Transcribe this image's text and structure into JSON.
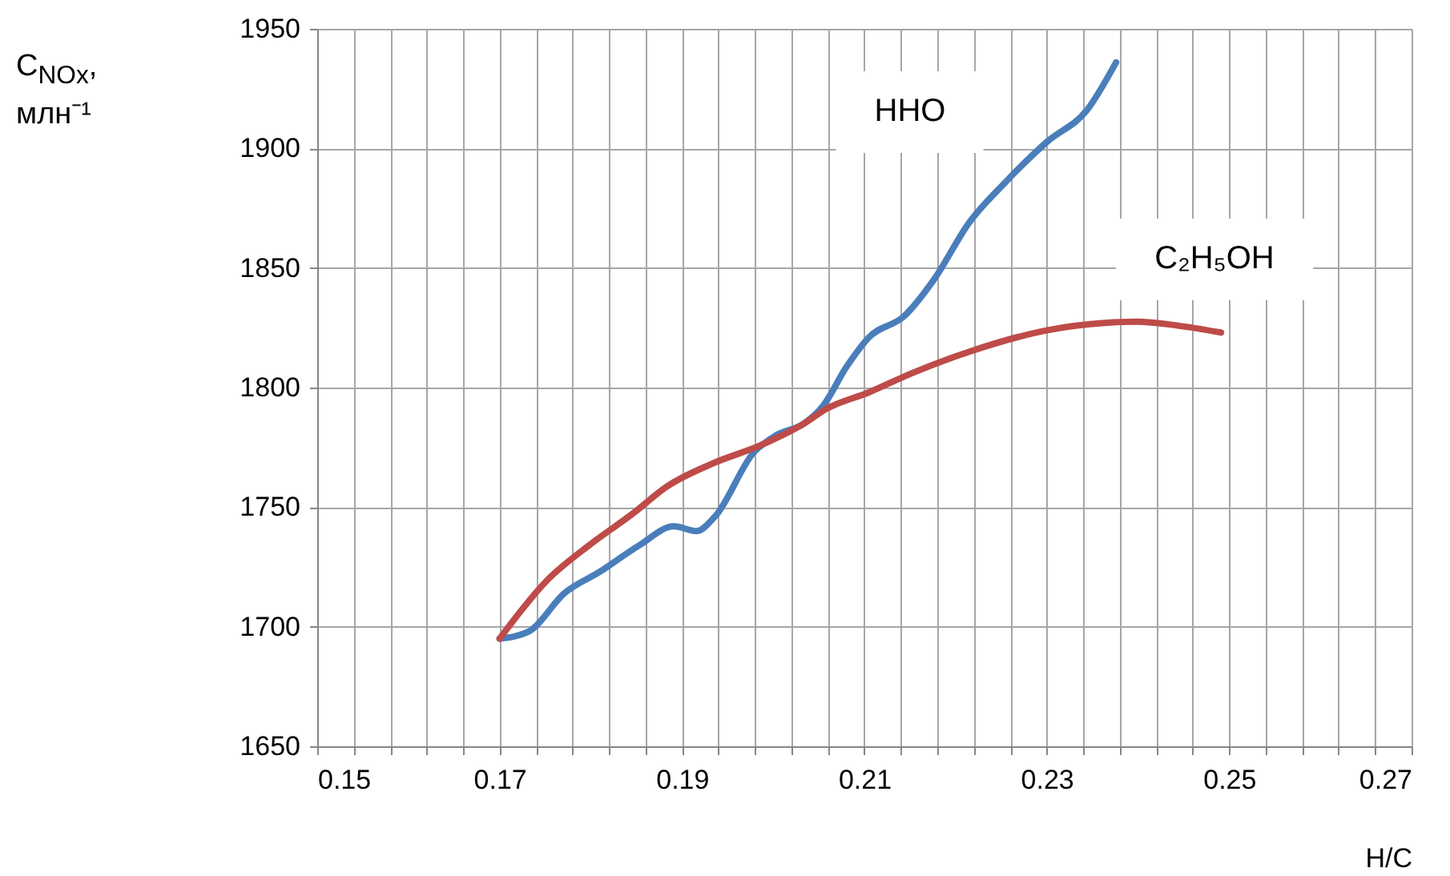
{
  "chart_data": {
    "type": "line",
    "xlabel": "H/C",
    "ylabel": "C$_{NOx}$, млн⁻¹",
    "annotations": [
      "HHO",
      "C₂H₅OH"
    ],
    "series": [
      {
        "color": "#4a7ebb",
        "x": [
          0.17,
          0.1732,
          0.1771,
          0.181,
          0.1853,
          0.1891,
          0.1916,
          0.1936,
          0.1979,
          0.2003,
          0.2034,
          0.2054,
          0.2081,
          0.2105,
          0.2144,
          0.2176,
          0.2215,
          0.2255,
          0.2301,
          0.2344,
          0.2376
        ],
        "values": [
          1695,
          1698,
          1714,
          1723,
          1734,
          1742,
          1740,
          1746,
          1773,
          1780,
          1785,
          1792,
          1809,
          1821,
          1830,
          1845,
          1869,
          1886,
          1903,
          1916,
          1936
        ]
      },
      {
        "color": "#be4b48",
        "x": [
          0.17,
          0.1751,
          0.1798,
          0.1845,
          0.1885,
          0.1932,
          0.1987,
          0.2034,
          0.2058,
          0.2105,
          0.2152,
          0.2215,
          0.2301,
          0.2364,
          0.2399,
          0.2442,
          0.2491
        ],
        "values": [
          1695,
          1719,
          1734,
          1747,
          1759,
          1768,
          1776,
          1785,
          1791,
          1798,
          1806,
          1815,
          1824,
          1827,
          1827.5,
          1826,
          1823
        ]
      }
    ],
    "xlim": [
      0.15,
      0.27
    ],
    "xticks": [
      0.15,
      {
        "value": 0.154,
        "label": null
      },
      {
        "value": 0.158,
        "label": null
      },
      {
        "value": 0.162,
        "label": null
      },
      {
        "value": 0.166,
        "label": null
      },
      0.17,
      {
        "value": 0.174,
        "label": null
      },
      {
        "value": 0.178,
        "label": null
      },
      {
        "value": 0.182,
        "label": null
      },
      {
        "value": 0.186,
        "label": null
      },
      0.19,
      {
        "value": 0.194,
        "label": null
      },
      {
        "value": 0.198,
        "label": null
      },
      {
        "value": 0.202,
        "label": null
      },
      {
        "value": 0.206,
        "label": null
      },
      0.21,
      {
        "value": 0.214,
        "label": null
      },
      {
        "value": 0.218,
        "label": null
      },
      {
        "value": 0.222,
        "label": null
      },
      {
        "value": 0.226,
        "label": null
      },
      0.23,
      {
        "value": 0.234,
        "label": null
      },
      {
        "value": 0.238,
        "label": null
      },
      {
        "value": 0.242,
        "label": null
      },
      {
        "value": 0.246,
        "label": null
      },
      0.25,
      {
        "value": 0.254,
        "label": null
      },
      {
        "value": 0.258,
        "label": null
      },
      {
        "value": 0.262,
        "label": null
      },
      {
        "value": 0.266,
        "label": null
      },
      0.27
    ],
    "ylim": [
      1650,
      1950
    ],
    "yticks": [
      1650,
      1700,
      1750,
      1800,
      1850,
      1900,
      1950
    ],
    "grid": true
  }
}
